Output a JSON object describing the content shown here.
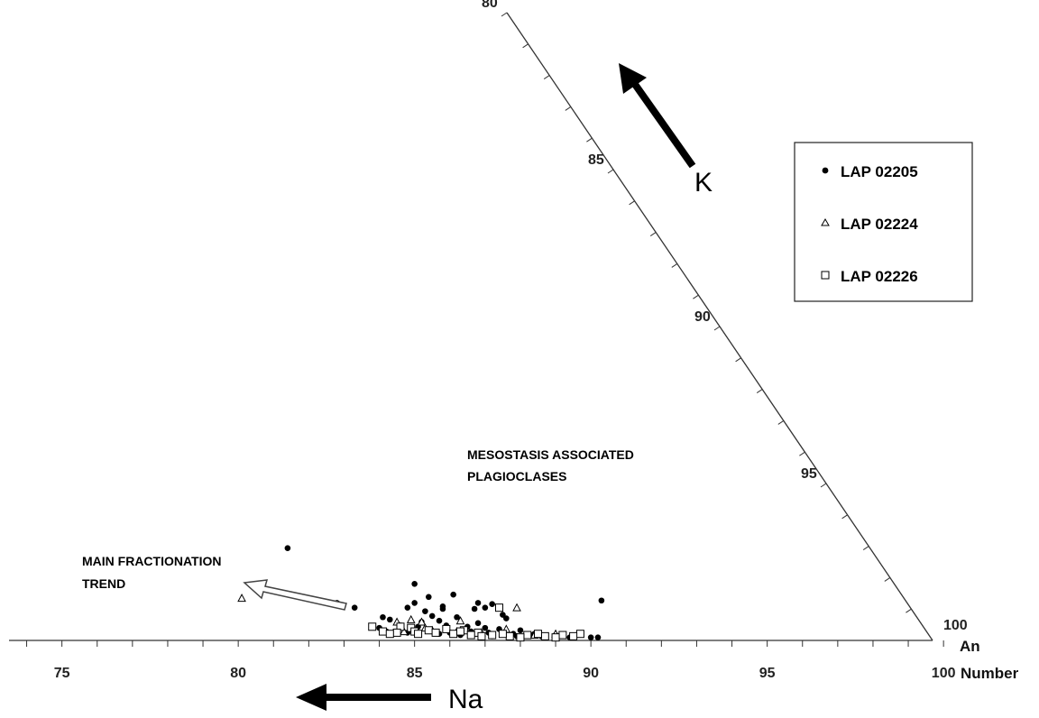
{
  "chart_data": {
    "type": "scatter",
    "x_ticks": [
      75,
      80,
      85,
      90,
      95,
      100
    ],
    "x_tick_labels": [
      "75",
      "80",
      "85",
      "90",
      "95",
      "100"
    ],
    "xlabel": "Number",
    "xlim": [
      73.5,
      100
    ],
    "diagonal_ticks": [
      80,
      85,
      90,
      95,
      100
    ],
    "diagonal_tick_labels": [
      "80",
      "85",
      "90",
      "95",
      "100"
    ],
    "diagonal_label": "An",
    "arrow_labels": {
      "k": "K",
      "na": "Na"
    },
    "annotations": {
      "mesostasis": [
        "MESOSTASIS ASSOCIATED",
        "PLAGIOCLASES"
      ],
      "fractionation": [
        "MAIN FRACTIONATION",
        "TREND"
      ]
    },
    "legend_position": "top-right",
    "series": [
      {
        "name": "LAP 02205",
        "marker": "filled-circle",
        "color": "#000000",
        "points": [
          [
            81.4,
            7.6
          ],
          [
            85.0,
            4.6
          ],
          [
            86.1,
            3.7
          ],
          [
            85.4,
            3.5
          ],
          [
            82.8,
            3.0
          ],
          [
            83.3,
            2.6
          ],
          [
            85.0,
            3.0
          ],
          [
            86.8,
            3.0
          ],
          [
            87.2,
            2.9
          ],
          [
            90.3,
            3.2
          ],
          [
            84.8,
            2.6
          ],
          [
            85.8,
            2.7
          ],
          [
            86.7,
            2.5
          ],
          [
            87.0,
            2.6
          ],
          [
            85.3,
            2.3
          ],
          [
            85.8,
            2.5
          ],
          [
            84.1,
            1.8
          ],
          [
            84.3,
            1.6
          ],
          [
            85.5,
            1.9
          ],
          [
            86.2,
            1.8
          ],
          [
            87.5,
            2.0
          ],
          [
            87.6,
            1.7
          ],
          [
            85.2,
            1.4
          ],
          [
            85.7,
            1.5
          ],
          [
            86.8,
            1.3
          ],
          [
            84.0,
            0.9
          ],
          [
            84.6,
            1.1
          ],
          [
            85.1,
            1.0
          ],
          [
            85.9,
            1.1
          ],
          [
            86.5,
            1.0
          ],
          [
            87.0,
            0.9
          ],
          [
            87.4,
            0.8
          ],
          [
            88.0,
            0.7
          ],
          [
            84.2,
            0.6
          ],
          [
            84.8,
            0.5
          ],
          [
            85.5,
            0.6
          ],
          [
            86.0,
            0.5
          ],
          [
            86.6,
            0.6
          ],
          [
            87.1,
            0.5
          ],
          [
            87.8,
            0.4
          ],
          [
            88.4,
            0.4
          ],
          [
            89.0,
            0.3
          ],
          [
            89.6,
            0.3
          ],
          [
            90.2,
            0.1
          ],
          [
            88.3,
            0.3
          ],
          [
            87.9,
            0.2
          ],
          [
            87.2,
            0.2
          ],
          [
            86.9,
            0.1
          ],
          [
            89.4,
            0.1
          ],
          [
            90.0,
            0.1
          ],
          [
            88.6,
            0.2
          ],
          [
            86.3,
            0.3
          ],
          [
            85.7,
            0.4
          ]
        ]
      },
      {
        "name": "LAP 02224",
        "marker": "open-triangle",
        "color": "#000000",
        "points": [
          [
            80.1,
            3.4
          ],
          [
            87.9,
            2.6
          ],
          [
            86.3,
            1.5
          ],
          [
            84.5,
            1.4
          ],
          [
            84.9,
            1.6
          ],
          [
            85.2,
            1.4
          ],
          [
            87.6,
            0.8
          ],
          [
            85.5,
            0.7
          ],
          [
            86.9,
            0.5
          ],
          [
            86.2,
            0.6
          ],
          [
            84.7,
            0.6
          ],
          [
            88.4,
            0.3
          ],
          [
            89.0,
            0.4
          ],
          [
            85.3,
            0.9
          ]
        ]
      },
      {
        "name": "LAP 02226",
        "marker": "open-square",
        "color": "#000000",
        "points": [
          [
            87.4,
            2.6
          ],
          [
            83.8,
            1.0
          ],
          [
            84.6,
            1.0
          ],
          [
            84.9,
            0.9
          ],
          [
            85.4,
            0.7
          ],
          [
            85.9,
            0.8
          ],
          [
            86.4,
            0.7
          ],
          [
            86.8,
            0.5
          ],
          [
            84.1,
            0.6
          ],
          [
            84.5,
            0.5
          ],
          [
            85.0,
            0.6
          ],
          [
            85.6,
            0.5
          ],
          [
            86.1,
            0.4
          ],
          [
            86.6,
            0.3
          ],
          [
            87.2,
            0.3
          ],
          [
            87.7,
            0.2
          ],
          [
            88.2,
            0.3
          ],
          [
            88.7,
            0.2
          ],
          [
            89.2,
            0.3
          ],
          [
            89.7,
            0.4
          ],
          [
            84.3,
            0.4
          ],
          [
            86.9,
            0.2
          ],
          [
            88.0,
            0.1
          ],
          [
            89.0,
            0.1
          ],
          [
            87.5,
            0.4
          ],
          [
            86.3,
            0.6
          ],
          [
            85.1,
            0.4
          ],
          [
            88.5,
            0.4
          ],
          [
            89.5,
            0.2
          ]
        ]
      }
    ]
  }
}
